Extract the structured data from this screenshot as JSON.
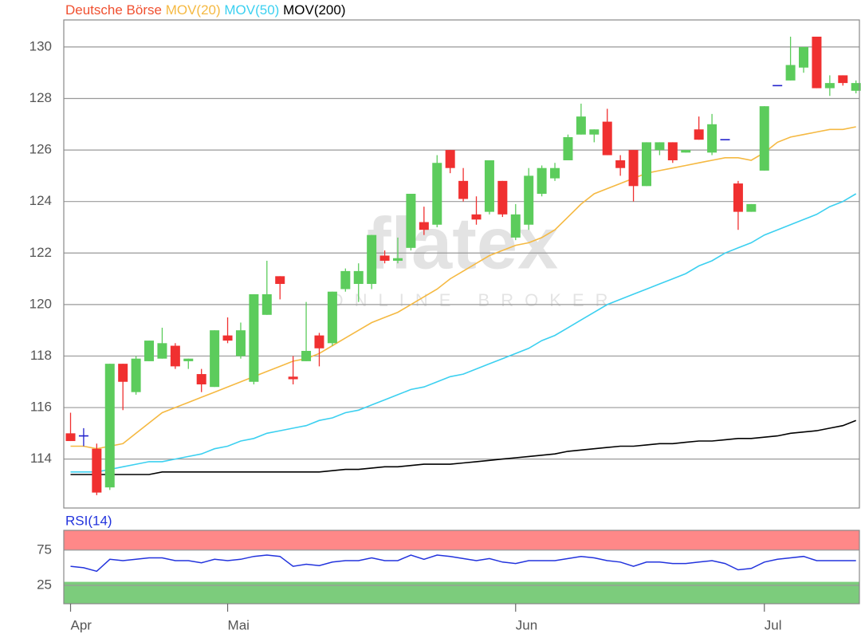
{
  "watermark": {
    "text": "flatex",
    "subtext": "ONLINE BROKER"
  },
  "chart_data": [
    {
      "type": "candlestick",
      "name": "Deutsche Börse",
      "name_color": "#f05030",
      "color_up": "#5ccc5c",
      "color_down": "#f03030",
      "color_flat": "#2222cc",
      "categories": [
        "Apr",
        null,
        null,
        null,
        null,
        null,
        null,
        null,
        null,
        null,
        null,
        null,
        "Mai",
        null,
        null,
        null,
        null,
        null,
        null,
        null,
        null,
        null,
        null,
        null,
        null,
        null,
        null,
        null,
        null,
        null,
        null,
        null,
        null,
        null,
        "Jun",
        null,
        null,
        null,
        null,
        null,
        null,
        null,
        null,
        null,
        null,
        null,
        null,
        null,
        null,
        null,
        null,
        null,
        null,
        "Jul",
        null,
        null,
        null,
        null,
        null,
        null,
        null
      ],
      "open": [
        115.0,
        114.9,
        114.4,
        112.9,
        117.7,
        116.6,
        117.8,
        117.9,
        118.4,
        117.8,
        117.3,
        116.8,
        118.8,
        118.0,
        117.0,
        119.6,
        121.1,
        117.2,
        117.8,
        118.8,
        118.5,
        120.6,
        120.8,
        120.8,
        121.9,
        121.7,
        122.2,
        123.2,
        123.1,
        126.0,
        124.8,
        123.5,
        123.6,
        124.8,
        122.6,
        123.1,
        124.3,
        124.9,
        125.6,
        126.6,
        126.6,
        127.1,
        125.6,
        126.0,
        124.6,
        126.0,
        126.3,
        125.9,
        126.8,
        125.9,
        126.4,
        124.7,
        123.6,
        125.2,
        128.5,
        128.7,
        129.2,
        130.4,
        128.4,
        128.9,
        128.3
      ],
      "high": [
        115.8,
        115.2,
        114.6,
        117.7,
        117.7,
        118.0,
        118.6,
        119.1,
        118.5,
        117.9,
        117.5,
        119.0,
        119.5,
        119.3,
        120.4,
        121.7,
        121.1,
        118.0,
        120.1,
        118.9,
        120.5,
        121.4,
        121.6,
        122.7,
        122.1,
        122.6,
        124.3,
        123.8,
        125.8,
        126.0,
        125.3,
        124.2,
        125.6,
        124.8,
        123.9,
        125.3,
        125.4,
        125.5,
        126.6,
        127.8,
        126.8,
        127.6,
        125.8,
        126.0,
        126.3,
        126.3,
        126.3,
        126.0,
        127.3,
        127.4,
        126.4,
        124.8,
        123.9,
        127.7,
        128.5,
        130.4,
        130.0,
        130.4,
        128.9,
        128.9,
        128.7
      ],
      "low": [
        114.7,
        114.5,
        112.6,
        112.8,
        115.9,
        116.5,
        117.8,
        117.9,
        117.5,
        117.5,
        116.6,
        116.8,
        118.5,
        117.9,
        116.9,
        119.6,
        120.2,
        116.9,
        117.8,
        117.6,
        118.4,
        120.5,
        120.1,
        120.6,
        121.6,
        121.6,
        122.1,
        122.7,
        123.0,
        125.1,
        124.0,
        123.1,
        123.5,
        123.4,
        122.5,
        122.9,
        124.2,
        124.8,
        125.6,
        126.6,
        126.3,
        125.8,
        125.0,
        124.0,
        124.6,
        125.8,
        125.5,
        125.9,
        126.4,
        125.8,
        126.4,
        122.9,
        123.6,
        125.2,
        128.5,
        128.7,
        129.0,
        128.4,
        128.1,
        128.5,
        128.2
      ],
      "close": [
        114.7,
        114.9,
        112.7,
        117.7,
        117.0,
        117.9,
        118.6,
        118.5,
        117.6,
        117.9,
        116.9,
        119.0,
        118.6,
        119.0,
        120.4,
        120.4,
        120.8,
        117.1,
        118.2,
        118.3,
        120.5,
        121.3,
        121.3,
        122.7,
        121.7,
        121.8,
        124.3,
        122.9,
        125.5,
        125.3,
        124.1,
        123.3,
        125.6,
        123.5,
        123.5,
        125.0,
        125.3,
        125.3,
        126.5,
        127.3,
        126.8,
        125.8,
        125.3,
        124.6,
        126.3,
        126.3,
        125.6,
        126.0,
        126.4,
        127.0,
        126.4,
        123.6,
        123.9,
        127.7,
        128.5,
        129.3,
        130.0,
        128.4,
        128.6,
        128.6,
        128.6
      ],
      "overlays": [
        {
          "name": "MOV(20)",
          "color": "#f5b942",
          "values": [
            114.5,
            114.5,
            114.4,
            114.5,
            114.6,
            115.0,
            115.4,
            115.8,
            116.0,
            116.2,
            116.4,
            116.6,
            116.8,
            117.0,
            117.2,
            117.4,
            117.6,
            117.8,
            117.9,
            118.1,
            118.4,
            118.7,
            119.0,
            119.3,
            119.5,
            119.7,
            120.0,
            120.3,
            120.6,
            121.0,
            121.3,
            121.6,
            121.9,
            122.1,
            122.3,
            122.4,
            122.6,
            122.9,
            123.4,
            123.9,
            124.3,
            124.5,
            124.7,
            124.9,
            125.1,
            125.2,
            125.3,
            125.4,
            125.5,
            125.6,
            125.7,
            125.7,
            125.6,
            125.9,
            126.3,
            126.5,
            126.6,
            126.7,
            126.8,
            126.8,
            126.9
          ]
        },
        {
          "name": "MOV(50)",
          "color": "#3cd0f0",
          "values": [
            113.5,
            113.5,
            113.5,
            113.6,
            113.7,
            113.8,
            113.9,
            113.9,
            114.0,
            114.1,
            114.2,
            114.4,
            114.5,
            114.7,
            114.8,
            115.0,
            115.1,
            115.2,
            115.3,
            115.5,
            115.6,
            115.8,
            115.9,
            116.1,
            116.3,
            116.5,
            116.7,
            116.8,
            117.0,
            117.2,
            117.3,
            117.5,
            117.7,
            117.9,
            118.1,
            118.3,
            118.6,
            118.8,
            119.1,
            119.4,
            119.7,
            120.0,
            120.2,
            120.4,
            120.6,
            120.8,
            121.0,
            121.2,
            121.5,
            121.7,
            122.0,
            122.2,
            122.4,
            122.7,
            122.9,
            123.1,
            123.3,
            123.5,
            123.8,
            124.0,
            124.3
          ]
        },
        {
          "name": "MOV(200)",
          "color": "#000000",
          "values": [
            113.4,
            113.4,
            113.4,
            113.4,
            113.4,
            113.4,
            113.4,
            113.5,
            113.5,
            113.5,
            113.5,
            113.5,
            113.5,
            113.5,
            113.5,
            113.5,
            113.5,
            113.5,
            113.5,
            113.5,
            113.55,
            113.6,
            113.6,
            113.65,
            113.7,
            113.7,
            113.75,
            113.8,
            113.8,
            113.8,
            113.85,
            113.9,
            113.95,
            114.0,
            114.05,
            114.1,
            114.15,
            114.2,
            114.3,
            114.35,
            114.4,
            114.45,
            114.5,
            114.5,
            114.55,
            114.6,
            114.6,
            114.65,
            114.7,
            114.7,
            114.75,
            114.8,
            114.8,
            114.85,
            114.9,
            115.0,
            115.05,
            115.1,
            115.2,
            115.3,
            115.5
          ]
        }
      ],
      "ylim": [
        112.1,
        131.05
      ],
      "yticks": [
        114,
        116,
        118,
        120,
        122,
        124,
        126,
        128,
        130
      ],
      "grid": true
    },
    {
      "type": "line",
      "series": [
        {
          "name": "RSI(14)",
          "color": "#2233dd",
          "values": [
            52,
            50,
            45,
            62,
            60,
            62,
            64,
            64,
            60,
            60,
            57,
            62,
            60,
            62,
            66,
            68,
            66,
            52,
            55,
            53,
            58,
            60,
            60,
            64,
            60,
            60,
            68,
            62,
            68,
            66,
            63,
            60,
            63,
            58,
            56,
            60,
            60,
            60,
            63,
            66,
            64,
            60,
            58,
            52,
            58,
            58,
            56,
            56,
            58,
            60,
            56,
            47,
            49,
            58,
            62,
            64,
            66,
            60,
            60,
            60,
            60
          ]
        }
      ],
      "bands": [
        {
          "above": 75,
          "color": "#ff8888"
        },
        {
          "below": 30,
          "color": "#7ccc7c"
        }
      ],
      "ylim": [
        -1,
        103
      ],
      "yticks": [
        25,
        75
      ],
      "grid": true
    }
  ]
}
